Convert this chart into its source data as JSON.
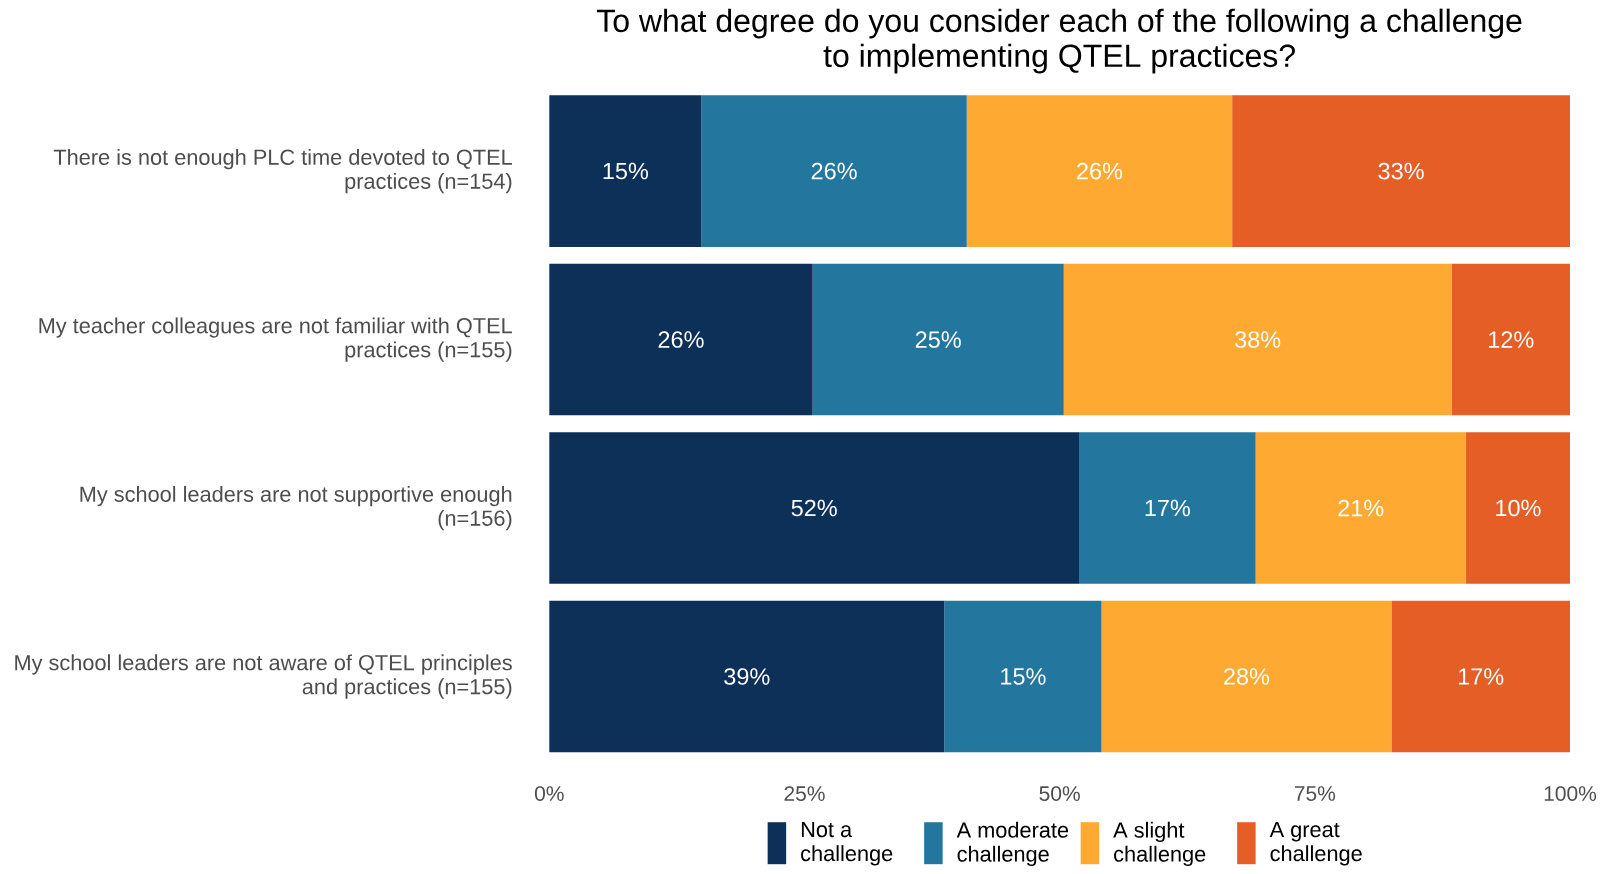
{
  "chart_data": {
    "type": "bar",
    "orientation": "horizontal",
    "stacked": true,
    "title": "To what degree do you consider each of the following a challenge to implementing QTEL practices?",
    "categories": [
      "There is not enough PLC time devoted to QTEL practices (n=154)",
      "My teacher colleagues are not familiar with QTEL practices (n=155)",
      "My school leaders are not supportive enough (n=156)",
      "My school leaders are not aware of QTEL principles and practices (n=155)"
    ],
    "series": [
      {
        "name": "Not a challenge",
        "color": "#0d3059",
        "values": [
          14.9,
          25.8,
          51.9,
          38.7
        ],
        "value_labels": [
          "15%",
          "26%",
          "52%",
          "39%"
        ]
      },
      {
        "name": "A moderate challenge",
        "color": "#23779e",
        "values": [
          26.0,
          24.6,
          17.3,
          15.4
        ],
        "value_labels": [
          "26%",
          "25%",
          "17%",
          "15%"
        ]
      },
      {
        "name": "A slight challenge",
        "color": "#fea932",
        "values": [
          26.0,
          38.0,
          20.6,
          28.4
        ],
        "value_labels": [
          "26%",
          "38%",
          "21%",
          "28%"
        ]
      },
      {
        "name": "A great challenge",
        "color": "#e55e26",
        "values": [
          33.1,
          11.6,
          10.2,
          17.5
        ],
        "value_labels": [
          "33%",
          "12%",
          "10%",
          "17%"
        ]
      }
    ],
    "xlim": [
      0,
      100
    ],
    "xticks": [
      {
        "value": 0,
        "label": "0%"
      },
      {
        "value": 25,
        "label": "25%"
      },
      {
        "value": 50,
        "label": "50%"
      },
      {
        "value": 75,
        "label": "75%"
      },
      {
        "value": 100,
        "label": "100%"
      }
    ],
    "legend": "bottom"
  }
}
